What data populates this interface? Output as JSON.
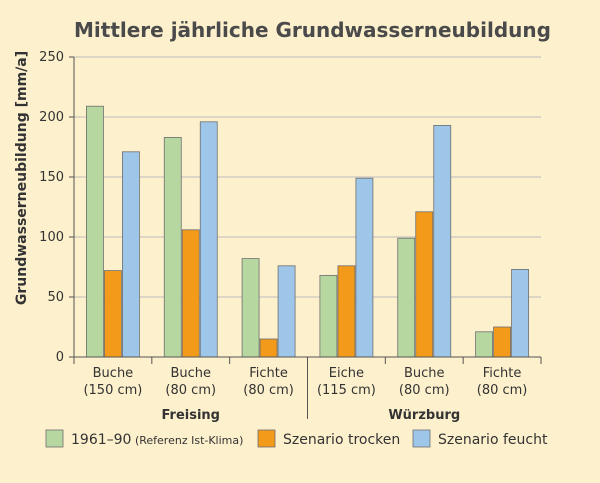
{
  "chart_data": {
    "type": "bar",
    "title": "Mittlere jährliche Grundwasserneubildung",
    "ylabel": "Grundwasserneubildung [mm/a]",
    "xlabel": "",
    "ylim": [
      0,
      250
    ],
    "yticks": [
      0,
      50,
      100,
      150,
      200,
      250
    ],
    "categories": [
      {
        "line1": "Buche",
        "line2": "(150 cm)"
      },
      {
        "line1": "Buche",
        "line2": "(80 cm)"
      },
      {
        "line1": "Fichte",
        "line2": "(80 cm)"
      },
      {
        "line1": "Eiche",
        "line2": "(115 cm)"
      },
      {
        "line1": "Buche",
        "line2": "(80 cm)"
      },
      {
        "line1": "Fichte",
        "line2": "(80 cm)"
      }
    ],
    "groups": [
      {
        "label": "Freising",
        "categories": [
          0,
          1,
          2
        ]
      },
      {
        "label": "Würzburg",
        "categories": [
          3,
          4,
          5
        ]
      }
    ],
    "series": [
      {
        "name": "1961–90",
        "note": "(Referenz Ist-Klima)",
        "color": "#b6d7a0",
        "values": [
          209,
          183,
          82,
          68,
          99,
          21
        ]
      },
      {
        "name": "Szenario trocken",
        "color": "#f39a1a",
        "values": [
          72,
          106,
          15,
          76,
          121,
          25
        ]
      },
      {
        "name": "Szenario feucht",
        "color": "#9ec6e8",
        "values": [
          171,
          196,
          76,
          149,
          193,
          73
        ]
      }
    ],
    "grid": true,
    "legend_position": "bottom"
  }
}
